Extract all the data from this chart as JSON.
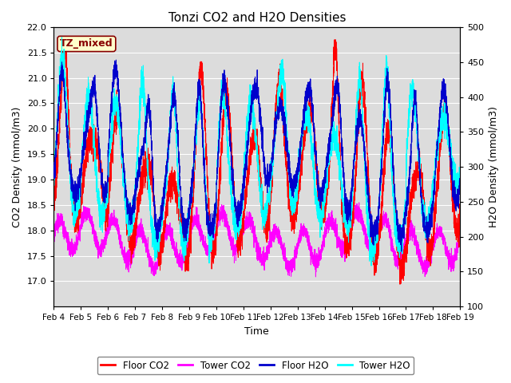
{
  "title": "Tonzi CO2 and H2O Densities",
  "xlabel": "Time",
  "ylabel_left": "CO2 Density (mmol/m3)",
  "ylabel_right": "H2O Density (mmol/m3)",
  "ylim_left": [
    16.5,
    22.0
  ],
  "ylim_right": [
    100,
    500
  ],
  "yticks_left": [
    17.0,
    17.5,
    18.0,
    18.5,
    19.0,
    19.5,
    20.0,
    20.5,
    21.0,
    21.5,
    22.0
  ],
  "yticks_right": [
    100,
    150,
    200,
    250,
    300,
    350,
    400,
    450,
    500
  ],
  "xtick_labels": [
    "Feb 4",
    "Feb 5",
    "Feb 6",
    "Feb 7",
    "Feb 8",
    "Feb 9",
    "Feb 10",
    "Feb 11",
    "Feb 12",
    "Feb 13",
    "Feb 14",
    "Feb 15",
    "Feb 16",
    "Feb 17",
    "Feb 18",
    "Feb 19"
  ],
  "colors": {
    "floor_co2": "#ff0000",
    "tower_co2": "#ff00ff",
    "floor_h2o": "#0000cc",
    "tower_h2o": "#00ffff"
  },
  "legend_labels": [
    "Floor CO2",
    "Tower CO2",
    "Floor H2O",
    "Tower H2O"
  ],
  "annotation_text": "TZ_mixed",
  "annotation_facecolor": "#ffffcc",
  "annotation_edgecolor": "#880000",
  "annotation_textcolor": "#880000",
  "background_color": "#dcdcdc",
  "n_points": 5000,
  "days": 15,
  "seed": 123
}
